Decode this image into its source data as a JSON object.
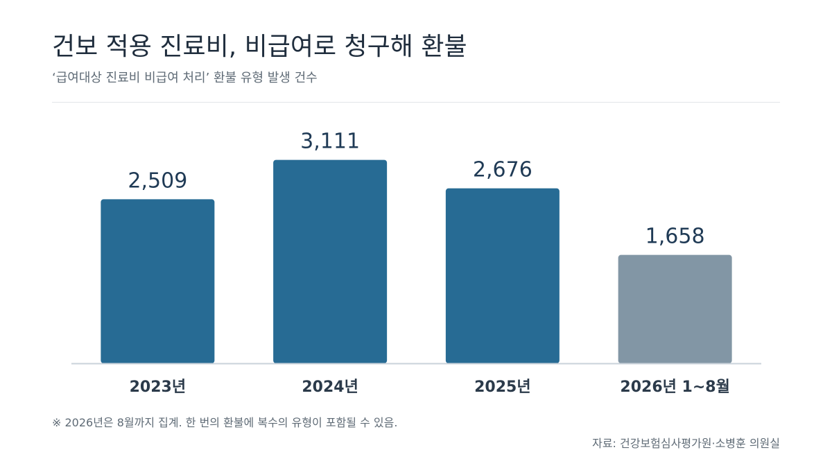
{
  "header": {
    "title": "건보 적용 진료비, 비급여로 청구해 환불",
    "subtitle": "‘급여대상 진료비 비급여 처리’ 환불 유형 발생 건수"
  },
  "footer": {
    "note": "※ 2026년은 8월까지 집계. 한 번의 환불에 복수의 유형이 포함될 수 있음.",
    "source": "자료: 건강보험심사평가원·소병훈 의원실"
  },
  "colors": {
    "bar": "#276b94",
    "bar_partial": "#8296a5",
    "value_text": "#1f3a55",
    "category_text": "#2b3a4a",
    "baseline": "#c9d2da"
  },
  "chart_data": {
    "type": "bar",
    "categories": [
      "2023년",
      "2024년",
      "2025년",
      "2026년 1~8월"
    ],
    "values": [
      2509,
      3111,
      2676,
      1658
    ],
    "value_labels": [
      "2,509",
      "3,111",
      "2,676",
      "1,658"
    ],
    "partial": [
      false,
      false,
      false,
      true
    ],
    "title": "건보 적용 진료비, 비급여로 청구해 환불",
    "xlabel": "",
    "ylabel": "",
    "ylim": [
      0,
      3500
    ],
    "grid": false,
    "legend": "none"
  }
}
